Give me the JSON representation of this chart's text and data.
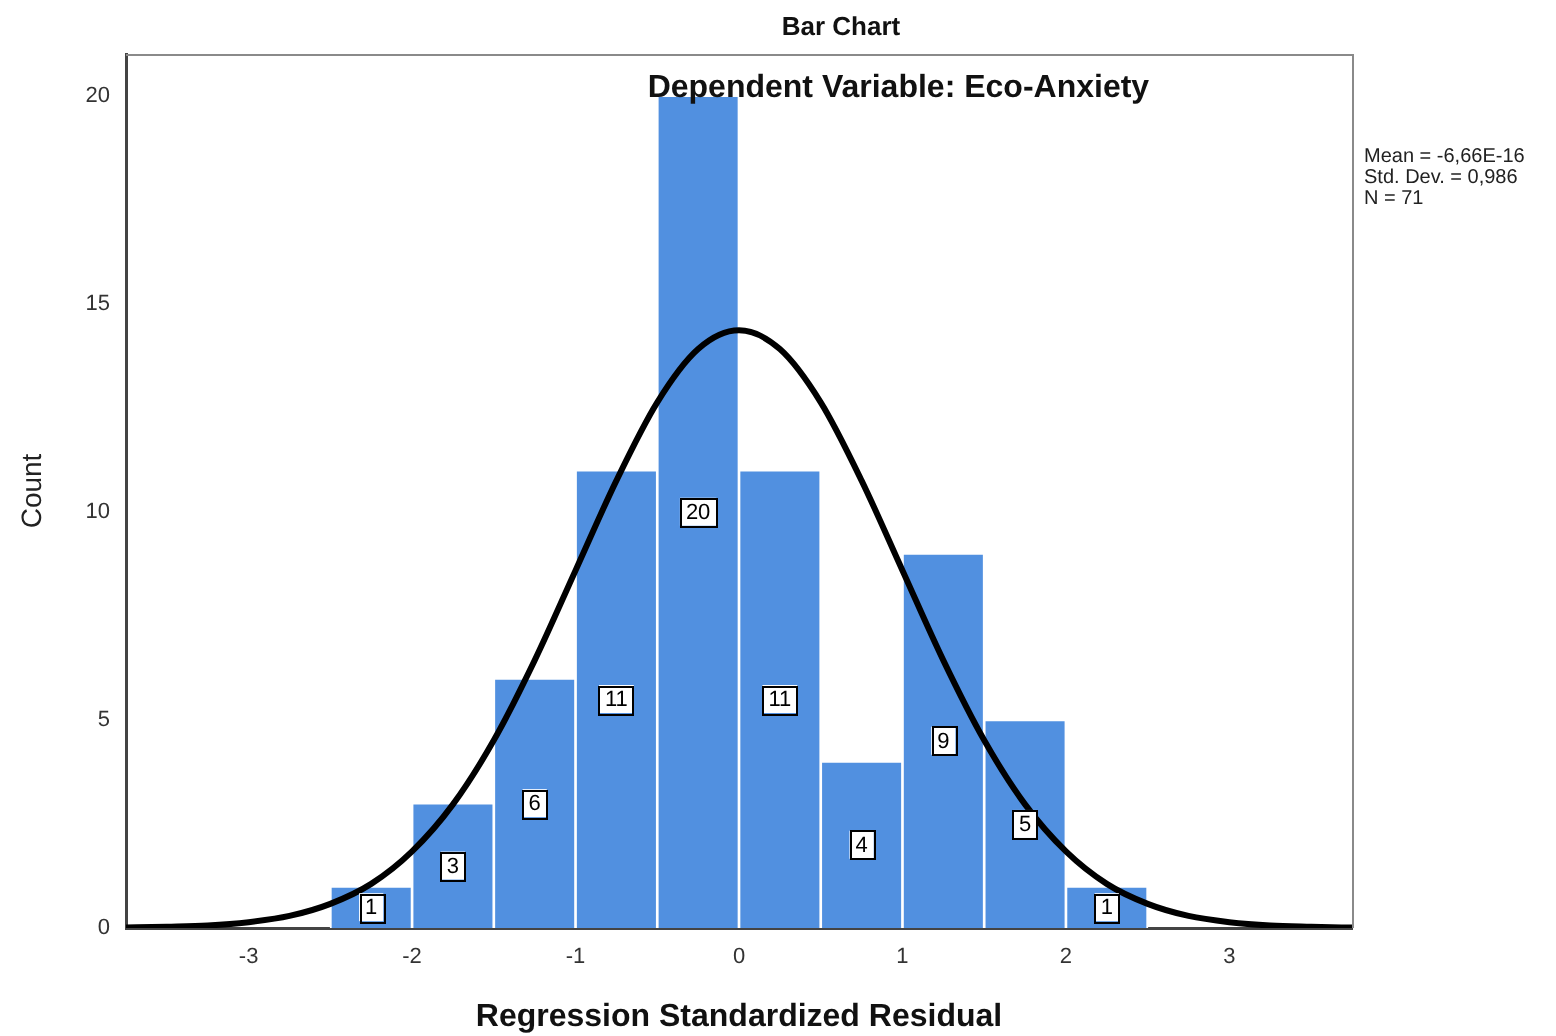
{
  "chart_data": {
    "type": "histogram",
    "title": "Bar Chart",
    "subtitle": "Dependent Variable: Eco-Anxiety",
    "xlabel": "Regression Standardized Residual",
    "ylabel": "Count",
    "annotations": [
      "Mean = -6,66E-16",
      "Std. Dev. = 0,986",
      "N = 71"
    ],
    "bins": [
      -2.5,
      -2,
      -1.5,
      -1,
      -0.5,
      0,
      0.5,
      1,
      1.5,
      2,
      2.5
    ],
    "series": [
      {
        "color": "#5190e0",
        "values": [
          1,
          3,
          6,
          11,
          20,
          11,
          4,
          9,
          5,
          1
        ],
        "value_labels": [
          "1",
          "3",
          "6",
          "11",
          "20",
          "11",
          "4",
          "9",
          "5",
          "1"
        ]
      },
      {
        "type": "line",
        "color": "#000000",
        "marker": "none",
        "x": [
          -3.75,
          -3.5,
          -3.25,
          -3,
          -2.75,
          -2.5,
          -2.25,
          -2,
          -1.75,
          -1.5,
          -1.25,
          -1,
          -0.75,
          -0.5,
          -0.25,
          0,
          0.25,
          0.5,
          0.75,
          1,
          1.25,
          1.5,
          1.75,
          2,
          2.25,
          2.5,
          2.75,
          3,
          3.25,
          3.5,
          3.75
        ],
        "values": [
          0.01,
          0.03,
          0.06,
          0.14,
          0.29,
          0.58,
          1.06,
          1.84,
          2.97,
          4.51,
          6.43,
          8.59,
          10.75,
          12.63,
          13.91,
          14.36,
          13.91,
          12.63,
          10.75,
          8.59,
          6.43,
          4.51,
          2.97,
          1.84,
          1.06,
          0.58,
          0.29,
          0.14,
          0.06,
          0.03,
          0.01
        ]
      }
    ],
    "xlim": [
      -3.75,
      3.75
    ],
    "xticks": [
      -3,
      -2,
      -1,
      0,
      1,
      2,
      3
    ],
    "ylim": [
      0,
      21
    ],
    "yticks": [
      0,
      5,
      10,
      15,
      20
    ]
  }
}
